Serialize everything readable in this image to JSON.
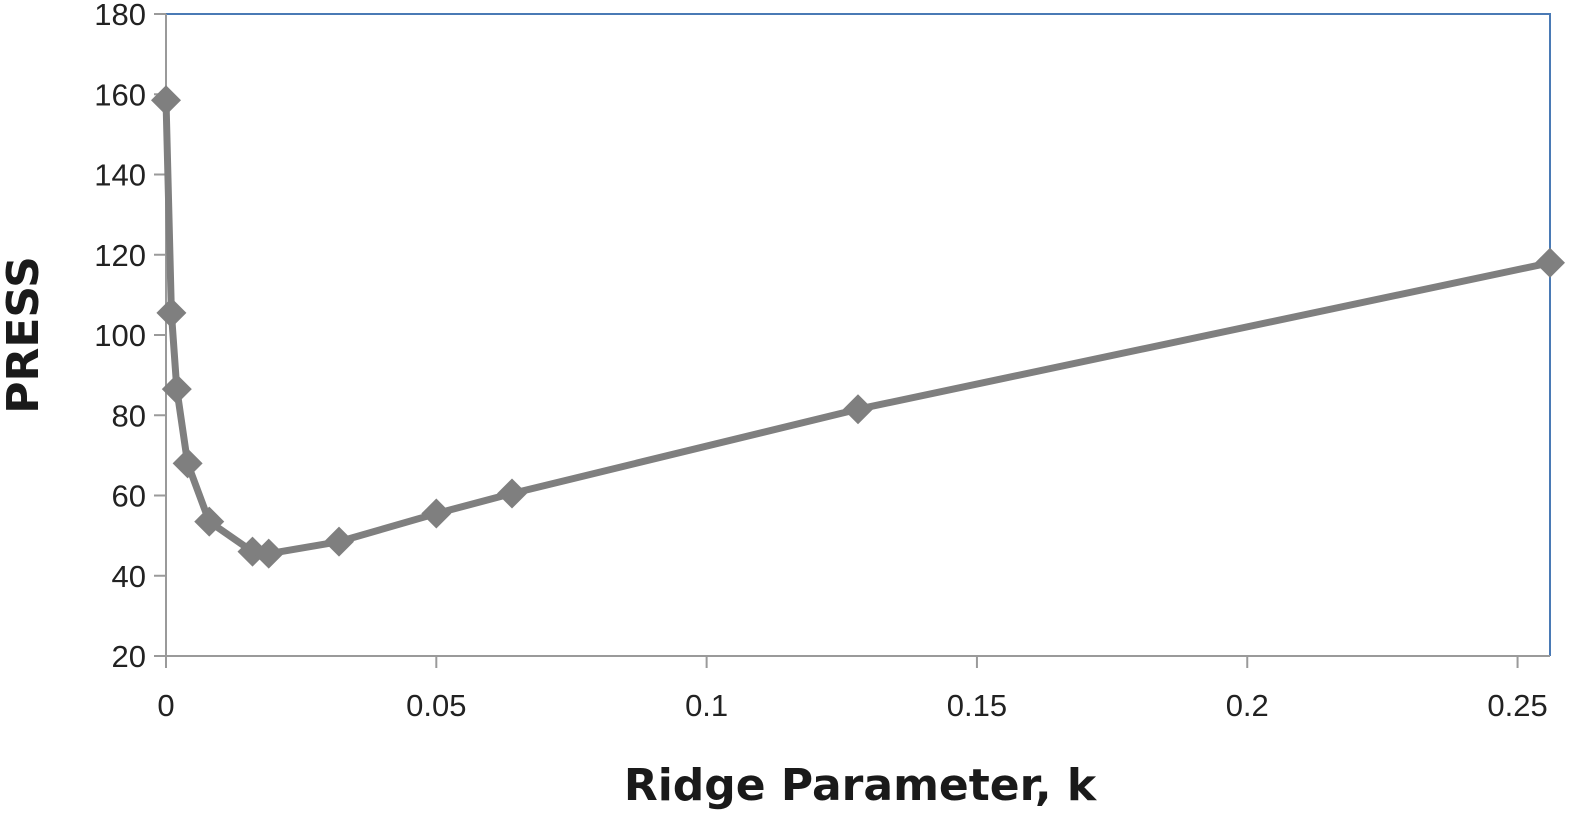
{
  "chart_data": {
    "type": "line",
    "title": "",
    "xlabel": "Ridge Parameter, k",
    "ylabel": "PRESS",
    "xlim": [
      0,
      0.256
    ],
    "ylim": [
      20,
      180
    ],
    "x_ticks": [
      0,
      0.05,
      0.1,
      0.15,
      0.2,
      0.25
    ],
    "x_tick_labels": [
      "0",
      "0.05",
      "0.1",
      "0.15",
      "0.2",
      "0.25"
    ],
    "y_ticks": [
      20,
      40,
      60,
      80,
      100,
      120,
      140,
      160,
      180
    ],
    "y_tick_labels": [
      "20",
      "40",
      "60",
      "80",
      "100",
      "120",
      "140",
      "160",
      "180"
    ],
    "grid": false,
    "legend": "none",
    "marker": "diamond",
    "colors": {
      "series": "#7f7f7f",
      "axis": "#9a9a9a",
      "plot_border": "#4a7ab5"
    },
    "series": [
      {
        "x": [
          0,
          0.001,
          0.002,
          0.004,
          0.008,
          0.016,
          0.019,
          0.032,
          0.05,
          0.064,
          0.128,
          0.256
        ],
        "y": [
          158.5,
          105.5,
          86.5,
          68,
          53.5,
          46,
          45.5,
          48.5,
          55.5,
          60.5,
          81.5,
          118
        ]
      }
    ]
  }
}
